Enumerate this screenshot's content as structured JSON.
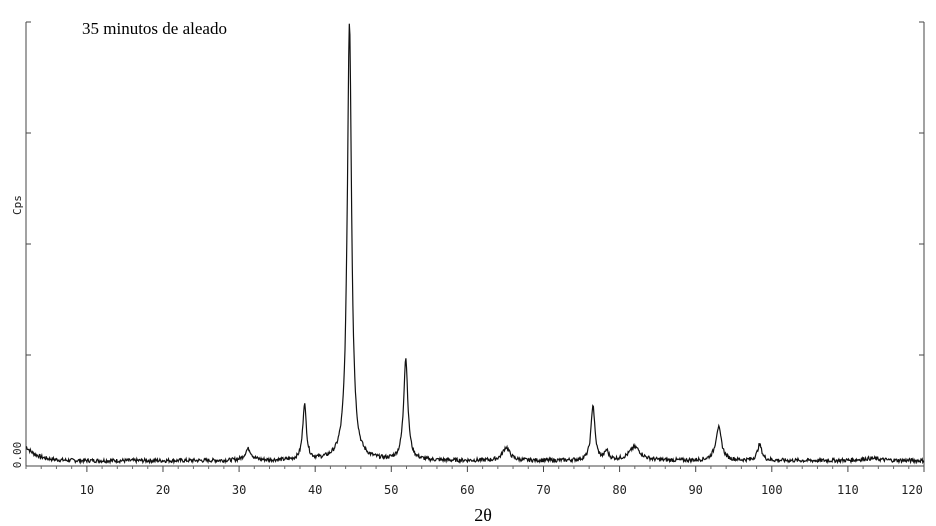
{
  "chart_data": {
    "type": "line",
    "title": "35 minutos de aleado",
    "xlabel": "2θ",
    "ylabel": "Cps",
    "y_zero_label": "0.00",
    "xlim": [
      2,
      120
    ],
    "ylim": [
      0,
      100
    ],
    "x_ticks": [
      10,
      20,
      30,
      40,
      50,
      60,
      70,
      80,
      90,
      100,
      110,
      120
    ],
    "x_tick_labels": [
      "10",
      "20",
      "30",
      "40",
      "50",
      "60",
      "70",
      "80",
      "90",
      "100",
      "110",
      "120"
    ],
    "y_ticks": [
      0,
      25,
      50,
      75,
      100
    ],
    "grid": false,
    "series": [
      {
        "color": "#111111",
        "baseline": 1.2,
        "peaks": [
          {
            "x": 31.2,
            "height": 2.6,
            "width": 0.5
          },
          {
            "x": 38.6,
            "height": 12.6,
            "width": 0.28
          },
          {
            "x": 44.5,
            "height": 99.0,
            "width": 0.34
          },
          {
            "x": 51.9,
            "height": 23.0,
            "width": 0.33
          },
          {
            "x": 65.1,
            "height": 3.0,
            "width": 0.55
          },
          {
            "x": 76.5,
            "height": 12.5,
            "width": 0.3
          },
          {
            "x": 78.3,
            "height": 2.0,
            "width": 0.3
          },
          {
            "x": 82.0,
            "height": 3.0,
            "width": 0.9
          },
          {
            "x": 93.0,
            "height": 7.5,
            "width": 0.45
          },
          {
            "x": 98.4,
            "height": 3.6,
            "width": 0.35
          },
          {
            "x": 113.0,
            "height": 0.5,
            "width": 1.5
          }
        ]
      }
    ]
  }
}
